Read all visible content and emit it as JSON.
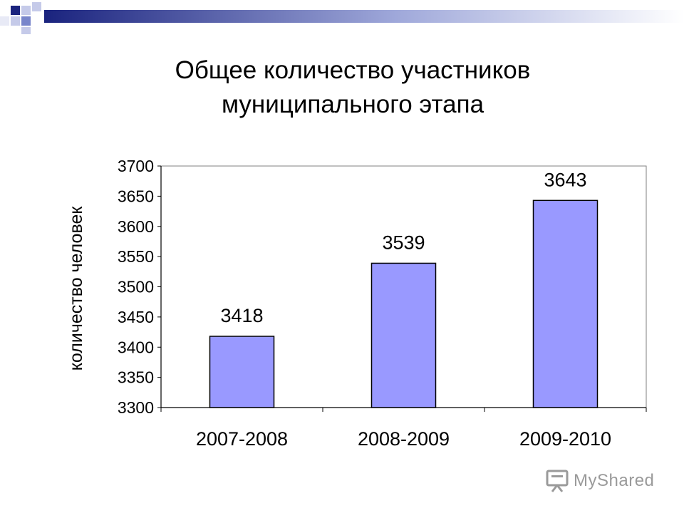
{
  "slide": {
    "title_line1": "Общее количество участников",
    "title_line2": "муниципального этапа"
  },
  "colors": {
    "bar_fill": "#9999FF",
    "bar_stroke": "#000000",
    "deco_dark": "#1A237E",
    "deco_light": "#C5CAE9"
  },
  "watermark": {
    "text": "MyShared",
    "icon": "presentation-board-icon"
  },
  "chart_data": {
    "type": "bar",
    "categories": [
      "2007-2008",
      "2008-2009",
      "2009-2010"
    ],
    "values": [
      3418,
      3539,
      3643
    ],
    "data_labels": [
      "3418",
      "3539",
      "3643"
    ],
    "title": "Общее количество участников муниципального этапа",
    "xlabel": "",
    "ylabel": "количество человек",
    "ylim": [
      3300,
      3700
    ],
    "yticks": [
      3300,
      3350,
      3400,
      3450,
      3500,
      3550,
      3600,
      3650,
      3700
    ],
    "grid": false,
    "legend": "none"
  }
}
